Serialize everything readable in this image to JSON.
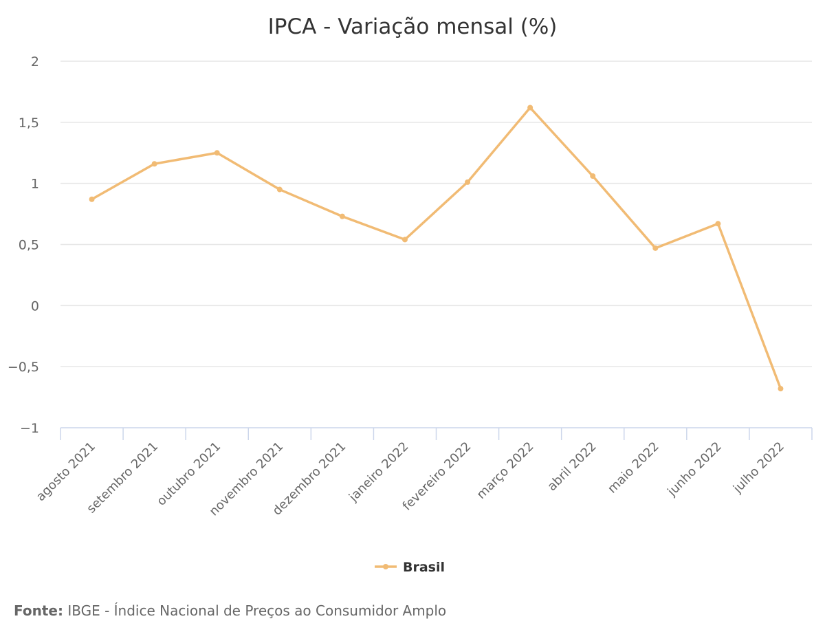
{
  "chart_data": {
    "type": "line",
    "title": "IPCA - Variação mensal (%)",
    "xlabel": "",
    "ylabel": "",
    "categories": [
      "agosto 2021",
      "setembro 2021",
      "outubro 2021",
      "novembro 2021",
      "dezembro 2021",
      "janeiro 2022",
      "fevereiro 2022",
      "março 2022",
      "abril 2022",
      "maio 2022",
      "junho 2022",
      "julho 2022"
    ],
    "series": [
      {
        "name": "Brasil",
        "color": "#f1bb74",
        "values": [
          0.87,
          1.16,
          1.25,
          0.95,
          0.73,
          0.54,
          1.01,
          1.62,
          1.06,
          0.47,
          0.67,
          -0.68
        ]
      }
    ],
    "ylim": [
      -1,
      2
    ],
    "yticks": [
      2,
      1.5,
      1,
      0.5,
      0,
      -0.5,
      -1
    ],
    "ytick_labels": [
      "2",
      "1,5",
      "1",
      "0,5",
      "0",
      "−0,5",
      "−1"
    ],
    "grid": true,
    "legend": "bottom-center"
  },
  "source": {
    "label": "Fonte:",
    "text": "IBGE - Índice Nacional de Preços ao Consumidor Amplo"
  },
  "colors": {
    "grid": "#e6e6e6",
    "axis": "#ccd6eb",
    "text": "#666666",
    "title": "#333333"
  }
}
